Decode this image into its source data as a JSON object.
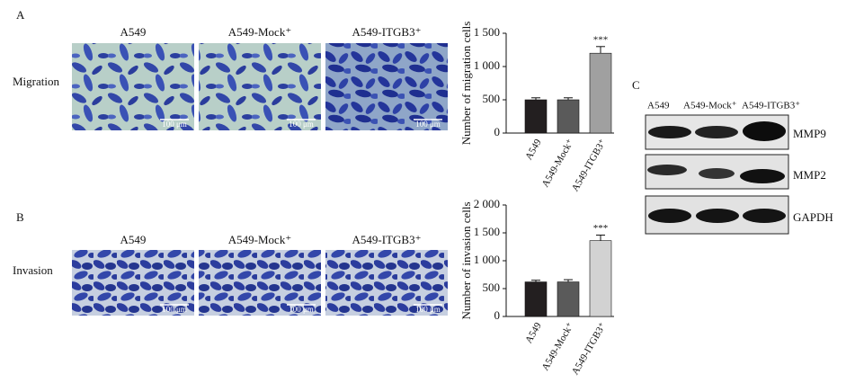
{
  "panels": [
    {
      "letter": "A",
      "row_label": "Migration",
      "columns": [
        "A549",
        "A549-Mock⁺",
        "A549-ITGB3⁺"
      ],
      "scale_bars": [
        "100 μm",
        "100 μm",
        "100 μm"
      ]
    },
    {
      "letter": "B",
      "row_label": "Invasion",
      "columns": [
        "A549",
        "A549-Mock⁺",
        "A549-ITGB3⁺"
      ],
      "scale_bars": [
        "100 μm",
        "100 μm",
        "100 μm"
      ]
    }
  ],
  "chart_data": [
    {
      "type": "bar",
      "ylabel": "Number of migration cells",
      "categories": [
        "A549",
        "A549-Mock⁺",
        "A549-ITGB3⁺"
      ],
      "values": [
        500,
        500,
        1200
      ],
      "errors": [
        30,
        30,
        100
      ],
      "colors": [
        "#231f20",
        "#5a5a5a",
        "#a0a0a0"
      ],
      "ylim": [
        0,
        1500
      ],
      "yticks": [
        0,
        500,
        {
          "value": 1000,
          "label": "1 000"
        },
        {
          "value": 1500,
          "label": "1 500"
        }
      ],
      "annotation": "***"
    },
    {
      "type": "bar",
      "ylabel": "Number of invasion cells",
      "categories": [
        "A549",
        "A549-Mock⁺",
        "A549-ITGB3⁺"
      ],
      "values": [
        620,
        620,
        1360
      ],
      "errors": [
        30,
        40,
        100
      ],
      "colors": [
        "#231f20",
        "#5a5a5a",
        "#d2d2d2"
      ],
      "ylim": [
        0,
        2000
      ],
      "yticks": [
        0,
        500,
        {
          "value": 1000,
          "label": "1 000"
        },
        {
          "value": 1500,
          "label": "1 500"
        },
        {
          "value": 2000,
          "label": "2 000"
        }
      ],
      "annotation": "***"
    }
  ],
  "blot": {
    "letter": "C",
    "lanes": [
      "A549",
      "A549-Mock⁺",
      "A549-ITGB3⁺"
    ],
    "proteins": [
      "MMP9",
      "MMP2",
      "GAPDH"
    ]
  }
}
